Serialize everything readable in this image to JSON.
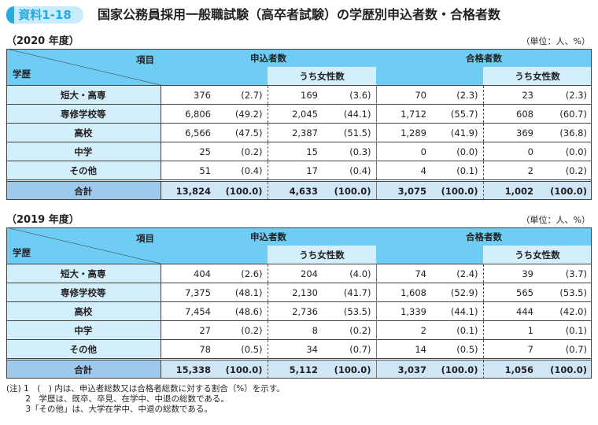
{
  "badge": "資料1-18",
  "title": "国家公務員採用一般職試験（高卒者試験）の学歴別申込者数・合格者数",
  "unit": "（単位：人、%）",
  "headers": {
    "item": "項目",
    "edu": "学歴",
    "applicants": "申込者数",
    "passed": "合格者数",
    "female": "うち女性数"
  },
  "tables": [
    {
      "year": "（2020 年度）",
      "rows": [
        [
          "短大・高専",
          "376",
          "(2.7)",
          "169",
          "(3.6)",
          "70",
          "(2.3)",
          "23",
          "(2.3)"
        ],
        [
          "専修学校等",
          "6,806",
          "(49.2)",
          "2,045",
          "(44.1)",
          "1,712",
          "(55.7)",
          "608",
          "(60.7)"
        ],
        [
          "高校",
          "6,566",
          "(47.5)",
          "2,387",
          "(51.5)",
          "1,289",
          "(41.9)",
          "369",
          "(36.8)"
        ],
        [
          "中学",
          "25",
          "(0.2)",
          "15",
          "(0.3)",
          "0",
          "(0.0)",
          "0",
          "(0.0)"
        ],
        [
          "その他",
          "51",
          "(0.4)",
          "17",
          "(0.4)",
          "4",
          "(0.1)",
          "2",
          "(0.2)"
        ],
        [
          "合計",
          "13,824",
          "(100.0)",
          "4,633",
          "(100.0)",
          "3,075",
          "(100.0)",
          "1,002",
          "(100.0)"
        ]
      ]
    },
    {
      "year": "（2019 年度）",
      "rows": [
        [
          "短大・高専",
          "404",
          "(2.6)",
          "204",
          "(4.0)",
          "74",
          "(2.4)",
          "39",
          "(3.7)"
        ],
        [
          "専修学校等",
          "7,375",
          "(48.1)",
          "2,130",
          "(41.7)",
          "1,608",
          "(52.9)",
          "565",
          "(53.5)"
        ],
        [
          "高校",
          "7,454",
          "(48.6)",
          "2,736",
          "(53.5)",
          "1,339",
          "(44.1)",
          "444",
          "(42.0)"
        ],
        [
          "中学",
          "27",
          "(0.2)",
          "8",
          "(0.2)",
          "2",
          "(0.1)",
          "1",
          "(0.1)"
        ],
        [
          "その他",
          "78",
          "(0.5)",
          "34",
          "(0.7)",
          "14",
          "(0.5)",
          "7",
          "(0.7)"
        ],
        [
          "合計",
          "15,338",
          "(100.0)",
          "5,112",
          "(100.0)",
          "3,037",
          "(100.0)",
          "1,056",
          "(100.0)"
        ]
      ]
    }
  ],
  "notes": [
    "(注) 1　(　) 内は、申込者総数又は合格者総数に対する割合（%）を示す。",
    "　　 2　学歴は、既卒、卒見、在学中、中退の総数である。",
    "　　 3「その他」は、大学在学中、中退の総数である。"
  ]
}
